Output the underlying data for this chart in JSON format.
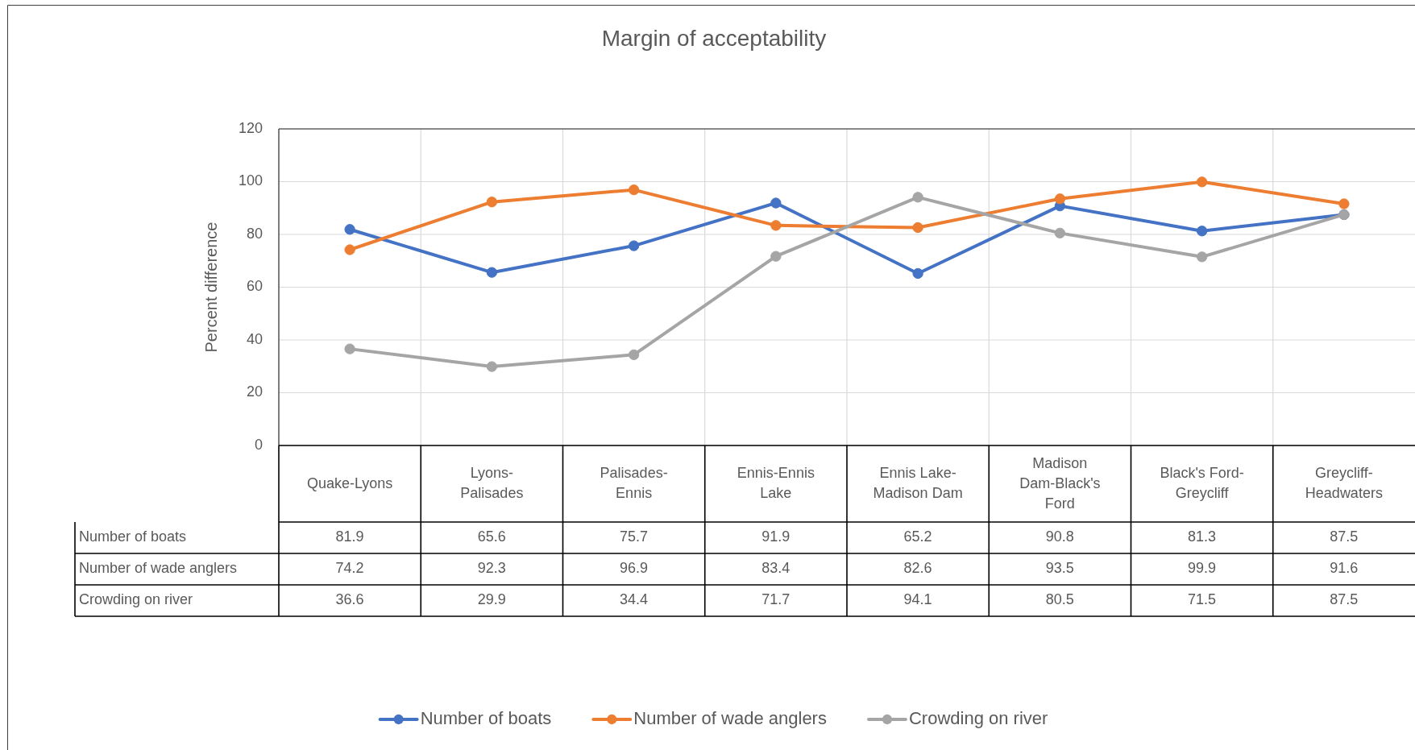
{
  "chart_data": {
    "type": "line",
    "title": "Margin of acceptability",
    "ylabel": "Percent difference",
    "categories": [
      "Quake-Lyons",
      "Lyons-Palisades",
      "Palisades-Ennis",
      "Ennis-Ennis Lake",
      "Ennis Lake-Madison Dam",
      "Madison Dam-Black's Ford",
      "Black's Ford-Greycliff",
      "Greycliff-Headwaters"
    ],
    "series": [
      {
        "name": "Number of boats",
        "color": "#4472c4",
        "values": [
          81.9,
          65.6,
          75.7,
          91.9,
          65.2,
          90.8,
          81.3,
          87.5
        ]
      },
      {
        "name": "Number of wade anglers",
        "color": "#ed7d31",
        "values": [
          74.2,
          92.3,
          96.9,
          83.4,
          82.6,
          93.5,
          99.9,
          91.6
        ]
      },
      {
        "name": "Crowding on river",
        "color": "#a5a5a5",
        "values": [
          36.6,
          29.9,
          34.4,
          71.7,
          94.1,
          80.5,
          71.5,
          87.5
        ]
      }
    ],
    "ylim": [
      0,
      120
    ],
    "yticks": [
      0,
      20,
      40,
      60,
      80,
      100,
      120
    ],
    "grid": true,
    "legend": "bottom",
    "marker": "circle",
    "data_labels": true
  }
}
